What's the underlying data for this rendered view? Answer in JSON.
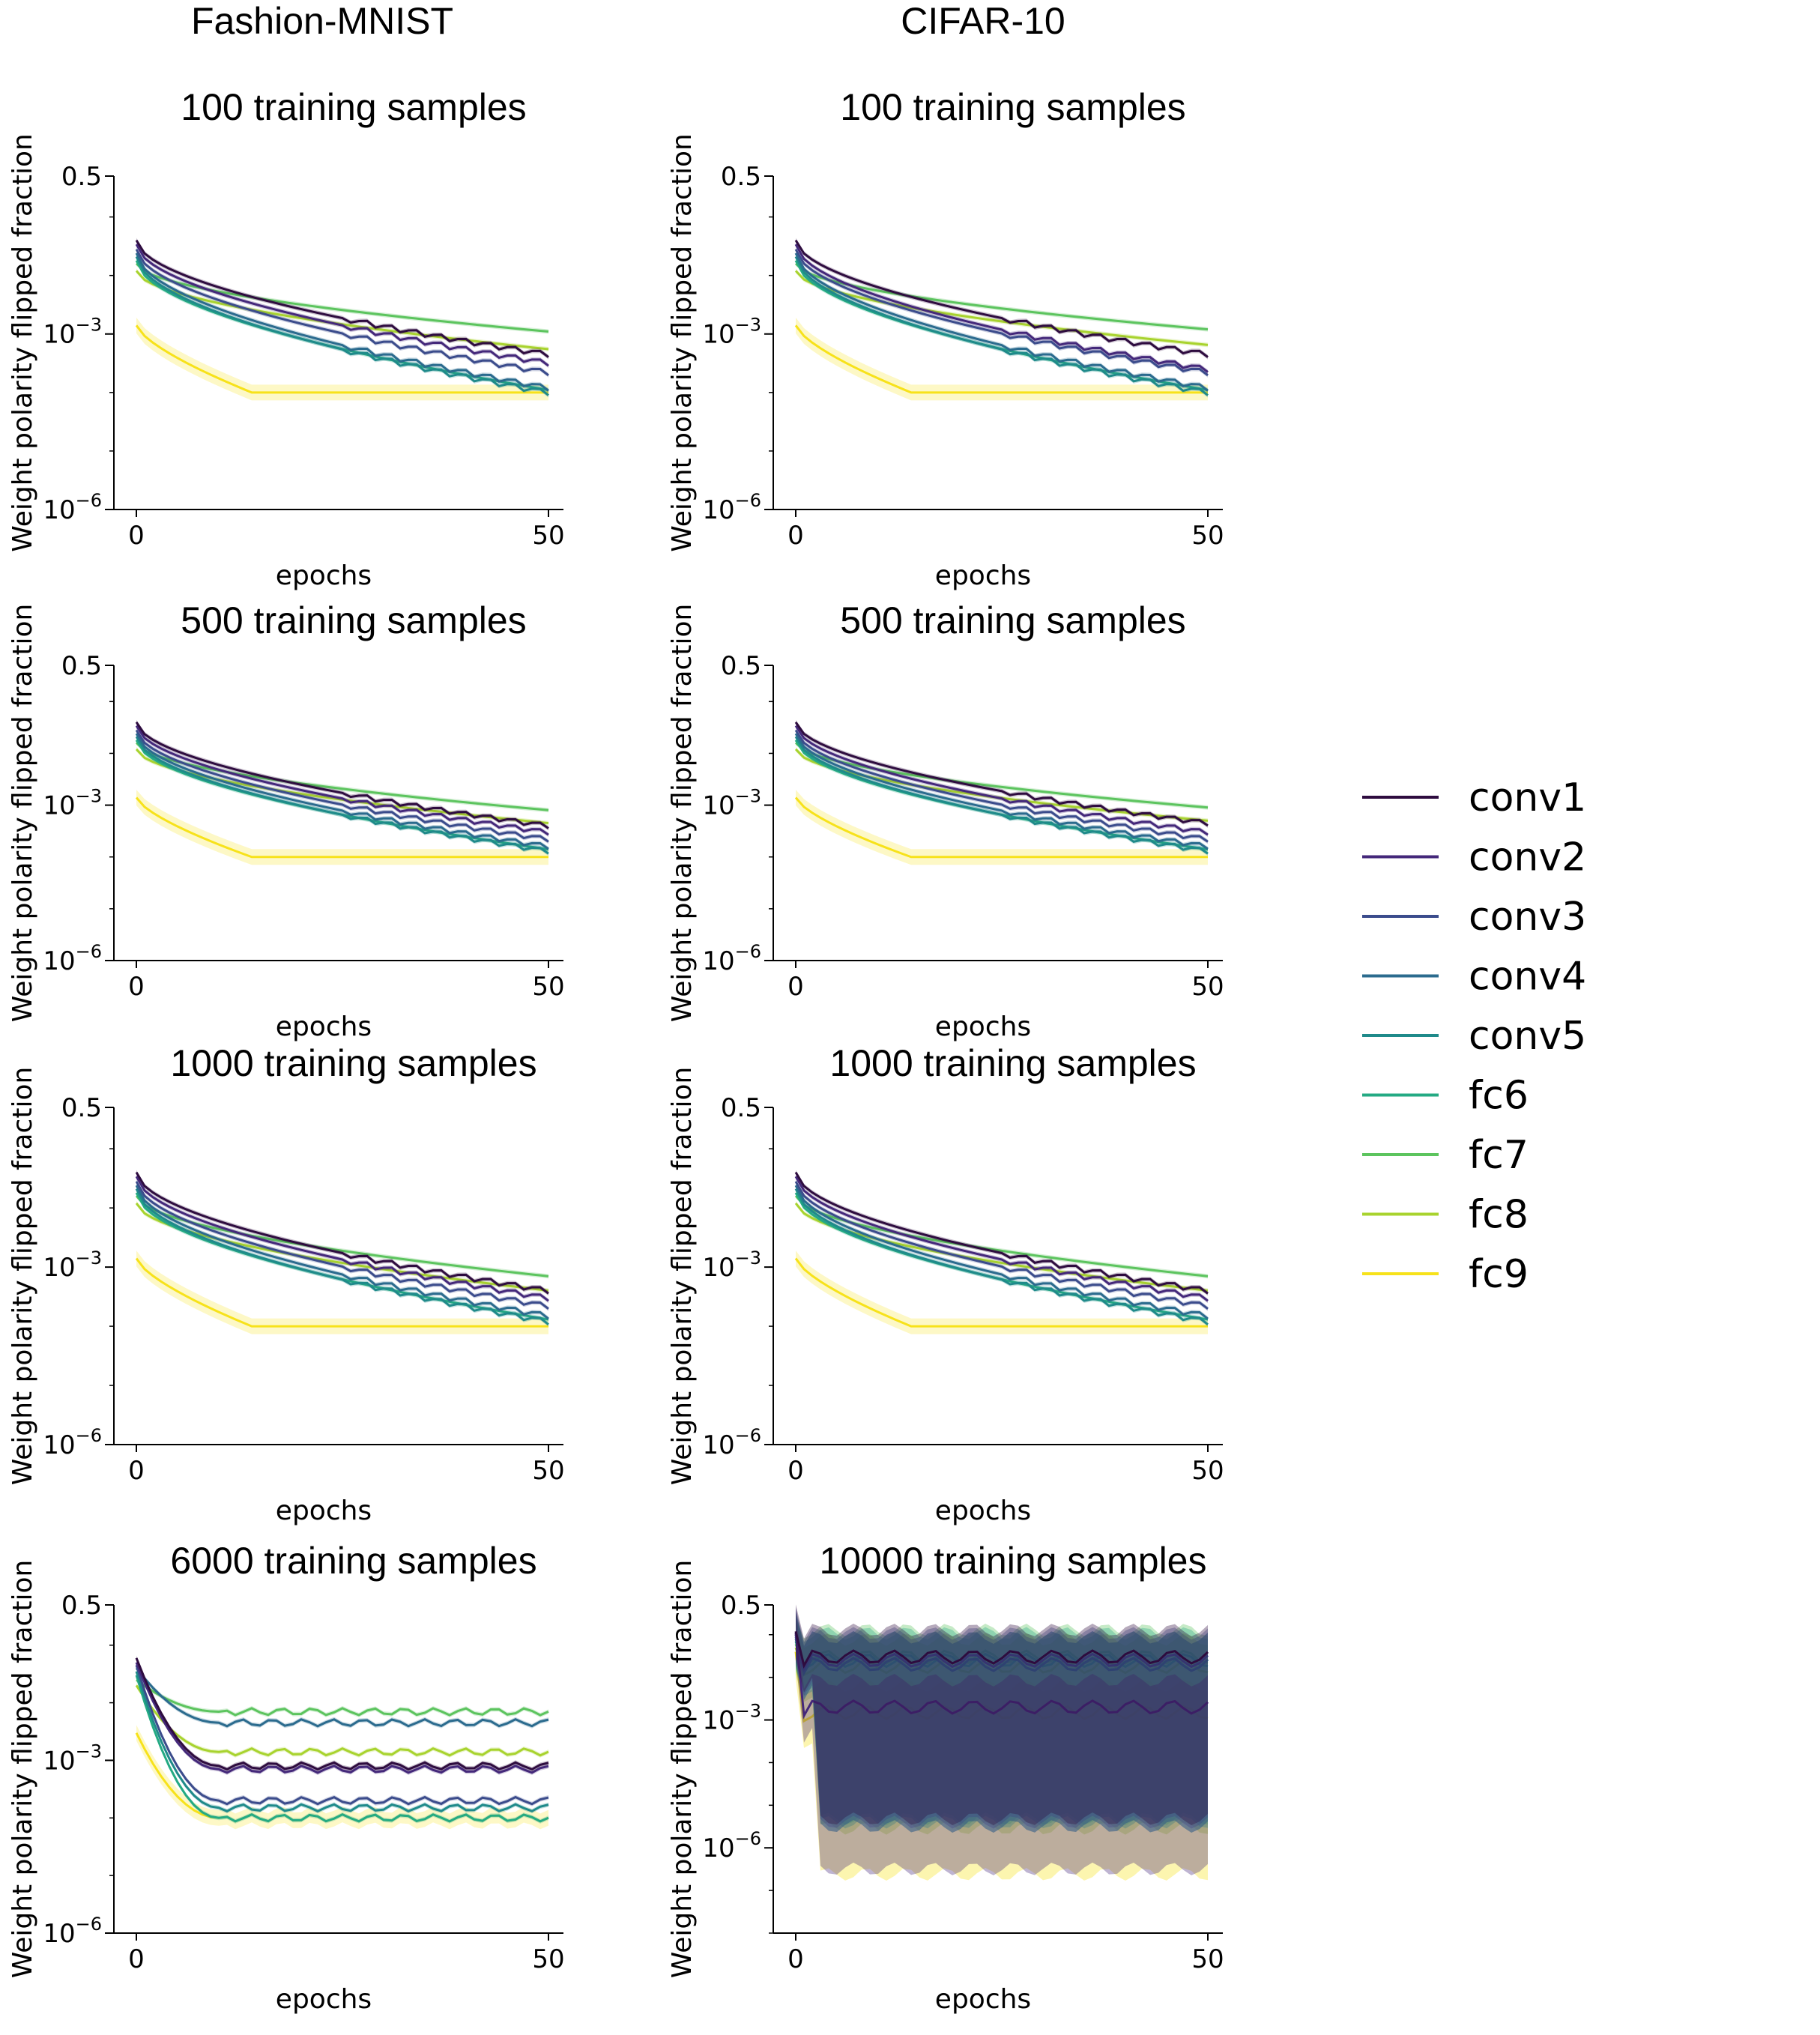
{
  "columns": [
    "Fashion-MNIST",
    "CIFAR-10"
  ],
  "legend": {
    "entries": [
      {
        "label": "conv1",
        "color": "#2e0c3f"
      },
      {
        "label": "conv2",
        "color": "#44287a"
      },
      {
        "label": "conv3",
        "color": "#3b4c8c"
      },
      {
        "label": "conv4",
        "color": "#2b6b8e"
      },
      {
        "label": "conv5",
        "color": "#1f8a8a"
      },
      {
        "label": "fc6",
        "color": "#24aa83"
      },
      {
        "label": "fc7",
        "color": "#5cc45e"
      },
      {
        "label": "fc8",
        "color": "#a8d32e"
      },
      {
        "label": "fc9",
        "color": "#f7e21a"
      }
    ]
  },
  "chart_data": [
    {
      "type": "line",
      "dataset": "Fashion-MNIST",
      "title": "100 training samples",
      "xlabel": "epochs",
      "ylabel": "Weight polarity flipped fraction",
      "xlim": [
        0,
        50
      ],
      "ylim": [
        1e-06,
        0.5
      ],
      "yscale": "log",
      "xticks": [
        "0",
        "50"
      ],
      "yticks": [
        "0.5",
        "10^-3",
        "10^-6"
      ],
      "series_start": {
        "conv1": 0.04,
        "conv2": 0.034,
        "conv3": 0.028,
        "conv4": 0.024,
        "conv5": 0.021,
        "fc6": 0.018,
        "fc7": 0.016,
        "fc8": 0.012,
        "fc9": 0.0014
      },
      "series_end": {
        "conv1": 0.00045,
        "conv2": 0.00032,
        "conv3": 0.00022,
        "conv4": 0.00012,
        "conv5": 0.0001,
        "fc6": 0.00011,
        "fc7": 0.0011,
        "fc8": 0.00055,
        "fc9": 0.0001
      }
    },
    {
      "type": "line",
      "dataset": "CIFAR-10",
      "title": "100 training samples",
      "xlabel": "epochs",
      "ylabel": "Weight polarity flipped fraction",
      "xlim": [
        0,
        50
      ],
      "ylim": [
        1e-06,
        0.5
      ],
      "yscale": "log",
      "xticks": [
        "0",
        "50"
      ],
      "yticks": [
        "0.5",
        "10^-3",
        "10^-6"
      ],
      "series_start": {
        "conv1": 0.04,
        "conv2": 0.034,
        "conv3": 0.028,
        "conv4": 0.024,
        "conv5": 0.021,
        "fc6": 0.018,
        "fc7": 0.016,
        "fc8": 0.012,
        "fc9": 0.0014
      },
      "series_end": {
        "conv1": 0.00045,
        "conv2": 0.00025,
        "conv3": 0.00022,
        "conv4": 0.00012,
        "conv5": 0.0001,
        "fc6": 0.00011,
        "fc7": 0.0012,
        "fc8": 0.00065,
        "fc9": 0.0001
      }
    },
    {
      "type": "line",
      "dataset": "Fashion-MNIST",
      "title": "500 training samples",
      "xlabel": "epochs",
      "ylabel": "Weight polarity flipped fraction",
      "xlim": [
        0,
        50
      ],
      "ylim": [
        1e-06,
        0.5
      ],
      "yscale": "log",
      "xticks": [
        "0",
        "50"
      ],
      "yticks": [
        "0.5",
        "10^-3",
        "10^-6"
      ],
      "series_start": {
        "conv1": 0.04,
        "conv2": 0.034,
        "conv3": 0.028,
        "conv4": 0.024,
        "conv5": 0.021,
        "fc6": 0.018,
        "fc7": 0.016,
        "fc8": 0.012,
        "fc9": 0.0014
      },
      "series_end": {
        "conv1": 0.0004,
        "conv2": 0.0003,
        "conv3": 0.00022,
        "conv4": 0.00016,
        "conv5": 0.00013,
        "fc6": 0.00014,
        "fc7": 0.0008,
        "fc8": 0.00045,
        "fc9": 0.0001
      }
    },
    {
      "type": "line",
      "dataset": "CIFAR-10",
      "title": "500 training samples",
      "xlabel": "epochs",
      "ylabel": "Weight polarity flipped fraction",
      "xlim": [
        0,
        50
      ],
      "ylim": [
        1e-06,
        0.5
      ],
      "yscale": "log",
      "xticks": [
        "0",
        "50"
      ],
      "yticks": [
        "0.5",
        "10^-3",
        "10^-6"
      ],
      "series_start": {
        "conv1": 0.04,
        "conv2": 0.034,
        "conv3": 0.028,
        "conv4": 0.024,
        "conv5": 0.021,
        "fc6": 0.018,
        "fc7": 0.016,
        "fc8": 0.012,
        "fc9": 0.0014
      },
      "series_end": {
        "conv1": 0.00045,
        "conv2": 0.0003,
        "conv3": 0.00022,
        "conv4": 0.00016,
        "conv5": 0.00013,
        "fc6": 0.00014,
        "fc7": 0.0009,
        "fc8": 0.0005,
        "fc9": 0.0001
      }
    },
    {
      "type": "line",
      "dataset": "Fashion-MNIST",
      "title": "1000 training samples",
      "xlabel": "epochs",
      "ylabel": "Weight polarity flipped fraction",
      "xlim": [
        0,
        50
      ],
      "ylim": [
        1e-06,
        0.5
      ],
      "yscale": "log",
      "xticks": [
        "0",
        "50"
      ],
      "yticks": [
        "0.5",
        "10^-3",
        "10^-6"
      ],
      "series_start": {
        "conv1": 0.04,
        "conv2": 0.034,
        "conv3": 0.028,
        "conv4": 0.024,
        "conv5": 0.021,
        "fc6": 0.018,
        "fc7": 0.016,
        "fc8": 0.012,
        "fc9": 0.0014
      },
      "series_end": {
        "conv1": 0.0004,
        "conv2": 0.0003,
        "conv3": 0.00022,
        "conv4": 0.00015,
        "conv5": 0.00012,
        "fc6": 0.00013,
        "fc7": 0.0007,
        "fc8": 0.0004,
        "fc9": 0.0001
      }
    },
    {
      "type": "line",
      "dataset": "CIFAR-10",
      "title": "1000 training samples",
      "xlabel": "epochs",
      "ylabel": "Weight polarity flipped fraction",
      "xlim": [
        0,
        50
      ],
      "ylim": [
        1e-06,
        0.5
      ],
      "yscale": "log",
      "xticks": [
        "0",
        "50"
      ],
      "yticks": [
        "0.5",
        "10^-3",
        "10^-6"
      ],
      "series_start": {
        "conv1": 0.04,
        "conv2": 0.034,
        "conv3": 0.028,
        "conv4": 0.024,
        "conv5": 0.021,
        "fc6": 0.018,
        "fc7": 0.016,
        "fc8": 0.012,
        "fc9": 0.0014
      },
      "series_end": {
        "conv1": 0.0004,
        "conv2": 0.0003,
        "conv3": 0.00022,
        "conv4": 0.00015,
        "conv5": 0.00012,
        "fc6": 0.00013,
        "fc7": 0.0007,
        "fc8": 0.0004,
        "fc9": 0.0001
      }
    },
    {
      "type": "line",
      "dataset": "Fashion-MNIST",
      "title": "6000 training samples",
      "xlabel": "epochs",
      "ylabel": "Weight polarity flipped fraction",
      "xlim": [
        0,
        50
      ],
      "ylim": [
        1e-06,
        0.5
      ],
      "yscale": "log",
      "xticks": [
        "0",
        "50"
      ],
      "yticks": [
        "0.5",
        "10^-3",
        "10^-6"
      ],
      "series_start": {
        "conv1": 0.06,
        "conv2": 0.05,
        "conv3": 0.045,
        "conv4": 0.04,
        "conv5": 0.035,
        "fc6": 0.03,
        "fc7": 0.025,
        "fc8": 0.02,
        "fc9": 0.003
      },
      "series_end": {
        "conv1": 0.0008,
        "conv2": 0.0007,
        "conv3": 0.0002,
        "conv4": 0.0045,
        "conv5": 0.00015,
        "fc6": 0.0001,
        "fc7": 0.007,
        "fc8": 0.0014,
        "fc9": 0.0001
      }
    },
    {
      "type": "line",
      "dataset": "CIFAR-10",
      "title": "10000 training samples",
      "xlabel": "epochs",
      "ylabel": "Weight polarity flipped fraction",
      "xlim": [
        0,
        50
      ],
      "ylim": [
        1e-08,
        0.5
      ],
      "yscale": "log",
      "xticks": [
        "0",
        "50"
      ],
      "yticks": [
        "0.5",
        "10^-3",
        "10^-6"
      ],
      "series_start": {
        "conv1": 0.12,
        "conv2": 0.11,
        "conv3": 0.1,
        "conv4": 0.09,
        "conv5": 0.08,
        "fc6": 0.07,
        "fc7": 0.06,
        "fc8": 0.05,
        "fc9": 0.04
      },
      "series_end": {
        "conv1": 0.03,
        "conv2": 0.002,
        "conv3": 0.025,
        "conv4": 0.02,
        "conv5": 0.02,
        "fc6": 0.025,
        "fc7": 0.03,
        "fc8": 0.018,
        "fc9": 0.0015
      }
    }
  ]
}
